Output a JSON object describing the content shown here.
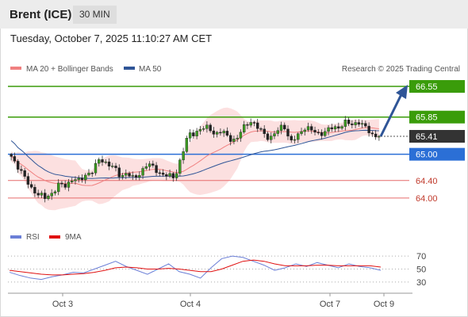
{
  "header": {
    "title": "Brent (ICE)",
    "timeframe": "30 MIN"
  },
  "date_line": "Tuesday, October 7, 2025 11:10:27 AM CET",
  "legend": {
    "ma20": {
      "label": "MA 20 + Bollinger Bands",
      "color": "#f08080"
    },
    "ma50": {
      "label": "MA 50",
      "color": "#2f5597"
    },
    "credit": "Research © 2025 Trading Central"
  },
  "rsi_legend": {
    "rsi": {
      "label": "RSI",
      "color": "#6b7fd7"
    },
    "ma9": {
      "label": "9MA",
      "color": "#e01010"
    }
  },
  "chart_data": [
    {
      "type": "candlestick",
      "x_labels": [
        "Oct 3",
        "Oct 4",
        "Oct 7",
        "Oct 9"
      ],
      "ylim": [
        63.6,
        66.75
      ],
      "last_price": 65.41,
      "levels": [
        {
          "value": "66.55",
          "kind": "resistance",
          "color": "#3a9c0a"
        },
        {
          "value": "65.85",
          "kind": "resistance",
          "color": "#3a9c0a"
        },
        {
          "value": "65.41",
          "kind": "last",
          "color": "#333333"
        },
        {
          "value": "65.00",
          "kind": "pivot",
          "color": "#2b6fd6"
        },
        {
          "value": "64.40",
          "kind": "support",
          "color": "#e66a6a"
        },
        {
          "value": "64.00",
          "kind": "support",
          "color": "#e66a6a"
        }
      ],
      "forecast_arrow": {
        "from": 65.41,
        "to": 66.55,
        "color": "#2f5597"
      },
      "anchors": [
        64.95,
        64.72,
        64.45,
        64.22,
        64.08,
        64.0,
        64.12,
        64.3,
        64.28,
        64.45,
        64.38,
        64.55,
        64.62,
        64.9,
        64.8,
        64.7,
        64.5,
        64.58,
        64.42,
        64.6,
        64.78,
        64.68,
        64.55,
        64.5,
        64.48,
        64.95,
        65.45,
        65.5,
        65.58,
        65.62,
        65.45,
        65.52,
        65.38,
        65.3,
        65.6,
        65.78,
        65.62,
        65.5,
        65.35,
        65.52,
        65.7,
        65.25,
        65.42,
        65.62,
        65.55,
        65.48,
        65.5,
        65.6,
        65.62,
        65.72,
        65.68,
        65.75,
        65.6,
        65.45,
        65.41
      ]
    },
    {
      "type": "line",
      "name": "RSI",
      "ylim": [
        20,
        80
      ],
      "y_ticks": [
        "70",
        "50",
        "30"
      ],
      "series": [
        {
          "name": "RSI",
          "color": "#6b7fd7",
          "values": [
            45,
            40,
            36,
            34,
            38,
            41,
            45,
            44,
            50,
            56,
            62,
            54,
            48,
            42,
            50,
            58,
            46,
            42,
            36,
            52,
            66,
            70,
            68,
            62,
            56,
            48,
            52,
            58,
            54,
            60,
            56,
            52,
            58,
            54,
            52,
            48
          ]
        },
        {
          "name": "9MA",
          "color": "#e01010",
          "values": [
            48,
            46,
            44,
            42,
            41,
            41,
            42,
            43,
            45,
            48,
            52,
            53,
            52,
            50,
            50,
            51,
            50,
            48,
            46,
            46,
            50,
            56,
            62,
            64,
            62,
            58,
            55,
            55,
            55,
            56,
            56,
            55,
            55,
            55,
            55,
            53
          ]
        }
      ]
    }
  ]
}
